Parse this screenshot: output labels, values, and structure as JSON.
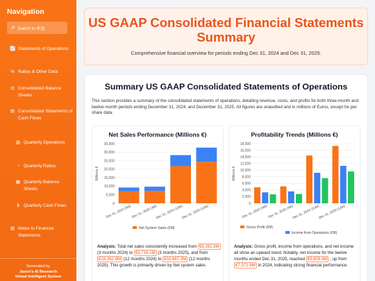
{
  "sidebar": {
    "title": "Navigation",
    "switch_label": "Switch to 中文",
    "items": [
      {
        "icon": "chart-line-icon",
        "glyph": "📈",
        "label": "Statements of Operations"
      },
      {
        "icon": "percent-icon",
        "glyph": "%",
        "label": "Ratios & Other Data"
      },
      {
        "icon": "balance-scale-icon",
        "glyph": "⚖",
        "label": "Consolidated Balance Sheets"
      },
      {
        "icon": "document-icon",
        "glyph": "▤",
        "label": "Consolidated Statements of Cash Flows"
      },
      {
        "icon": "bar-chart-icon",
        "glyph": "▥",
        "label": "Quarterly Operations"
      },
      {
        "icon": "pie-chart-icon",
        "glyph": "◔",
        "label": "Quarterly Ratios"
      },
      {
        "icon": "file-icon",
        "glyph": "▦",
        "label": "Quarterly Balance Sheets"
      },
      {
        "icon": "dollar-icon",
        "glyph": "$",
        "label": "Quarterly Cash Flows"
      },
      {
        "icon": "notes-icon",
        "glyph": "▧",
        "label": "Notes to Financial Statements"
      }
    ],
    "footer_line1": "Generated by",
    "footer_line2": "Jason's AI Research",
    "footer_line3": "Virtual Intelligent System"
  },
  "header": {
    "title": "US GAAP Consolidated Financial Statements Summary",
    "subtitle": "Comprehensive financial overview for periods ending Dec 31, 2024 and Dec 31, 2025."
  },
  "section": {
    "title": "Summary US GAAP Consolidated Statements of Operations",
    "description": "This section provides a summary of the consolidated statements of operations, detailing revenue, costs, and profits for both three-month and twelve-month periods ending December 31, 2024, and December 31, 2025. All figures are unaudited and in millions of Euros, except for per share data."
  },
  "colors": {
    "orange": "#f97316",
    "blue": "#3b82f6",
    "green": "#22c55e",
    "accent": "#e8551c"
  },
  "chart_data": [
    {
      "type": "bar",
      "title": "Net Sales Performance (Millions €)",
      "categories": [
        "Dec 31, 2024 (3M)",
        "Dec 31, 2025 (3M)",
        "Dec 31, 2024 (12M)",
        "Dec 31, 2025 (12M)"
      ],
      "series": [
        {
          "name": "Net System Sales (€M)",
          "values": [
            7100,
            7300,
            21800,
            24300
          ]
        },
        {
          "name": "",
          "values": [
            2163,
            2416,
            6462,
            8367
          ]
        }
      ],
      "stacked": true,
      "ylabel": "Millions €",
      "ylim": [
        0,
        35000
      ],
      "yticks": [
        0,
        5000,
        10000,
        15000,
        20000,
        25000,
        30000,
        35000
      ],
      "ytick_labels": [
        "0",
        "5,000",
        "10,000",
        "15,000",
        "20,000",
        "25,000",
        "30,000",
        "35,000"
      ],
      "legend": "bottom"
    },
    {
      "type": "bar",
      "title": "Profitability Trends (Millions €)",
      "categories": [
        "Dec 31, 2024 (3M)",
        "Dec 31, 2025 (3M)",
        "Dec 31, 2024 (12M)",
        "Dec 31, 2025 (12M)"
      ],
      "series": [
        {
          "name": "Gross Profit (€M)",
          "values": [
            4800,
            5100,
            14400,
            17300
          ]
        },
        {
          "name": "Income from Operations (€M)",
          "values": [
            3300,
            3600,
            9200,
            11300
          ]
        },
        {
          "name": "",
          "values": [
            2700,
            2800,
            7600,
            9600
          ]
        }
      ],
      "ylabel": "Millions €",
      "ylim": [
        0,
        18000
      ],
      "yticks": [
        0,
        2000,
        4000,
        6000,
        8000,
        10000,
        12000,
        14000,
        16000,
        18000
      ],
      "ytick_labels": [
        "0",
        "2,000",
        "4,000",
        "6,000",
        "8,000",
        "10,000",
        "12,000",
        "14,000",
        "16,000",
        "18,000"
      ],
      "legend": "bottom"
    }
  ],
  "analysis_left": {
    "lead": "Analysis:",
    "t1": "Total net sales consistently increased from",
    "v1": "€9,262.8M",
    "t2": "(3 months 2024) to",
    "v2": "€9,716.1M",
    "t3": "(3 months 2025), and from",
    "v3": "€28,262.8M",
    "t4": "(12 months 2024) to",
    "v4": "€32,667.3M",
    "t5": "(12 months 2025). This growth is primarily driven by Net system sales."
  },
  "analysis_right": {
    "lead": "Analysis:",
    "t1": "Gross profit, income from operations, and net income all show an upward trend. Notably, net income for the twelve months ended Dec 31, 2025, reached",
    "v1": "€9,609.4M",
    "t2": ", up from",
    "v2": "€7,571.6M",
    "t3": "in 2024, indicating strong financial performance."
  }
}
